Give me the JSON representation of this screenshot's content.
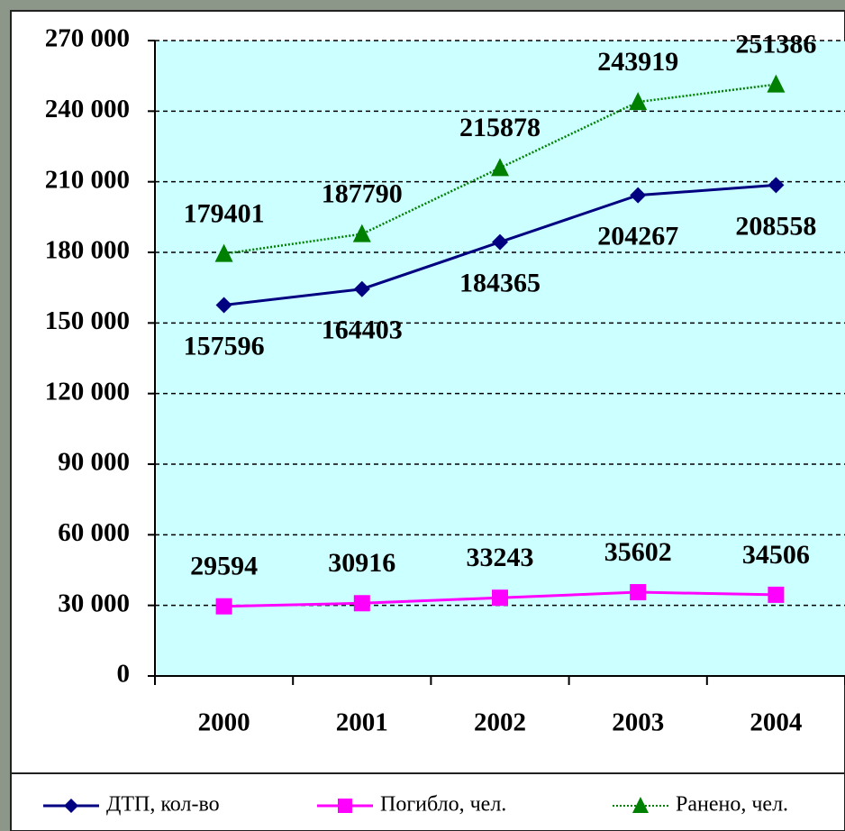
{
  "chart_data": {
    "type": "line",
    "categories": [
      "2000",
      "2001",
      "2002",
      "2003",
      "2004"
    ],
    "series": [
      {
        "name": "ДТП, кол-во",
        "color": "#000080",
        "marker": "diamond",
        "dash": "solid",
        "values": [
          157596,
          164403,
          184365,
          204267,
          208558
        ]
      },
      {
        "name": "Погибло, чел.",
        "color": "#ff00ff",
        "marker": "square",
        "dash": "solid",
        "values": [
          29594,
          30916,
          33243,
          35602,
          34506
        ]
      },
      {
        "name": "Ранено, чел.",
        "color": "#008000",
        "marker": "triangle",
        "dash": "dotted",
        "values": [
          179401,
          187790,
          215878,
          243919,
          251386
        ]
      }
    ],
    "ylim": [
      0,
      270000
    ],
    "yticks": [
      0,
      {
        "value": 30000,
        "label": "30 000"
      },
      {
        "value": 60000,
        "label": "60 000"
      },
      {
        "value": 90000,
        "label": "90 000"
      },
      {
        "value": 120000,
        "label": "120 000"
      },
      {
        "value": 150000,
        "label": "150 000"
      },
      {
        "value": 180000,
        "label": "180 000"
      },
      {
        "value": 210000,
        "label": "210 000"
      },
      {
        "value": 240000,
        "label": "240 000"
      },
      {
        "value": 270000,
        "label": "270 000"
      }
    ],
    "grid": true,
    "plot_background": "#ccffff",
    "legend": "bottom"
  }
}
